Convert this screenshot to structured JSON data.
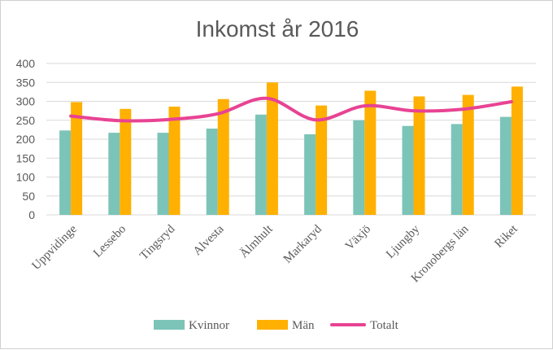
{
  "chart_data": {
    "type": "bar",
    "title": "Inkomst år 2016",
    "xlabel": "",
    "ylabel": "",
    "ylim": [
      0,
      400
    ],
    "yticks": [
      0,
      50,
      100,
      150,
      200,
      250,
      300,
      350,
      400
    ],
    "grid": true,
    "legend_position": "bottom",
    "categories": [
      "Uppvidinge",
      "Lessebo",
      "Tingsryd",
      "Alvesta",
      "Älmhult",
      "Markaryd",
      "Växjö",
      "Ljungby",
      "Kronobergs län",
      "Riket"
    ],
    "series": [
      {
        "name": "Kvinnor",
        "type": "bar",
        "color": "#7cc4b8",
        "values": [
          223,
          217,
          217,
          228,
          265,
          213,
          250,
          235,
          240,
          259
        ]
      },
      {
        "name": "Män",
        "type": "bar",
        "color": "#ffb000",
        "values": [
          298,
          280,
          286,
          306,
          350,
          289,
          328,
          313,
          317,
          339
        ]
      },
      {
        "name": "Totalt",
        "type": "line",
        "color": "#e84393",
        "values": [
          261,
          249,
          252,
          267,
          308,
          251,
          288,
          275,
          279,
          299
        ]
      }
    ]
  }
}
